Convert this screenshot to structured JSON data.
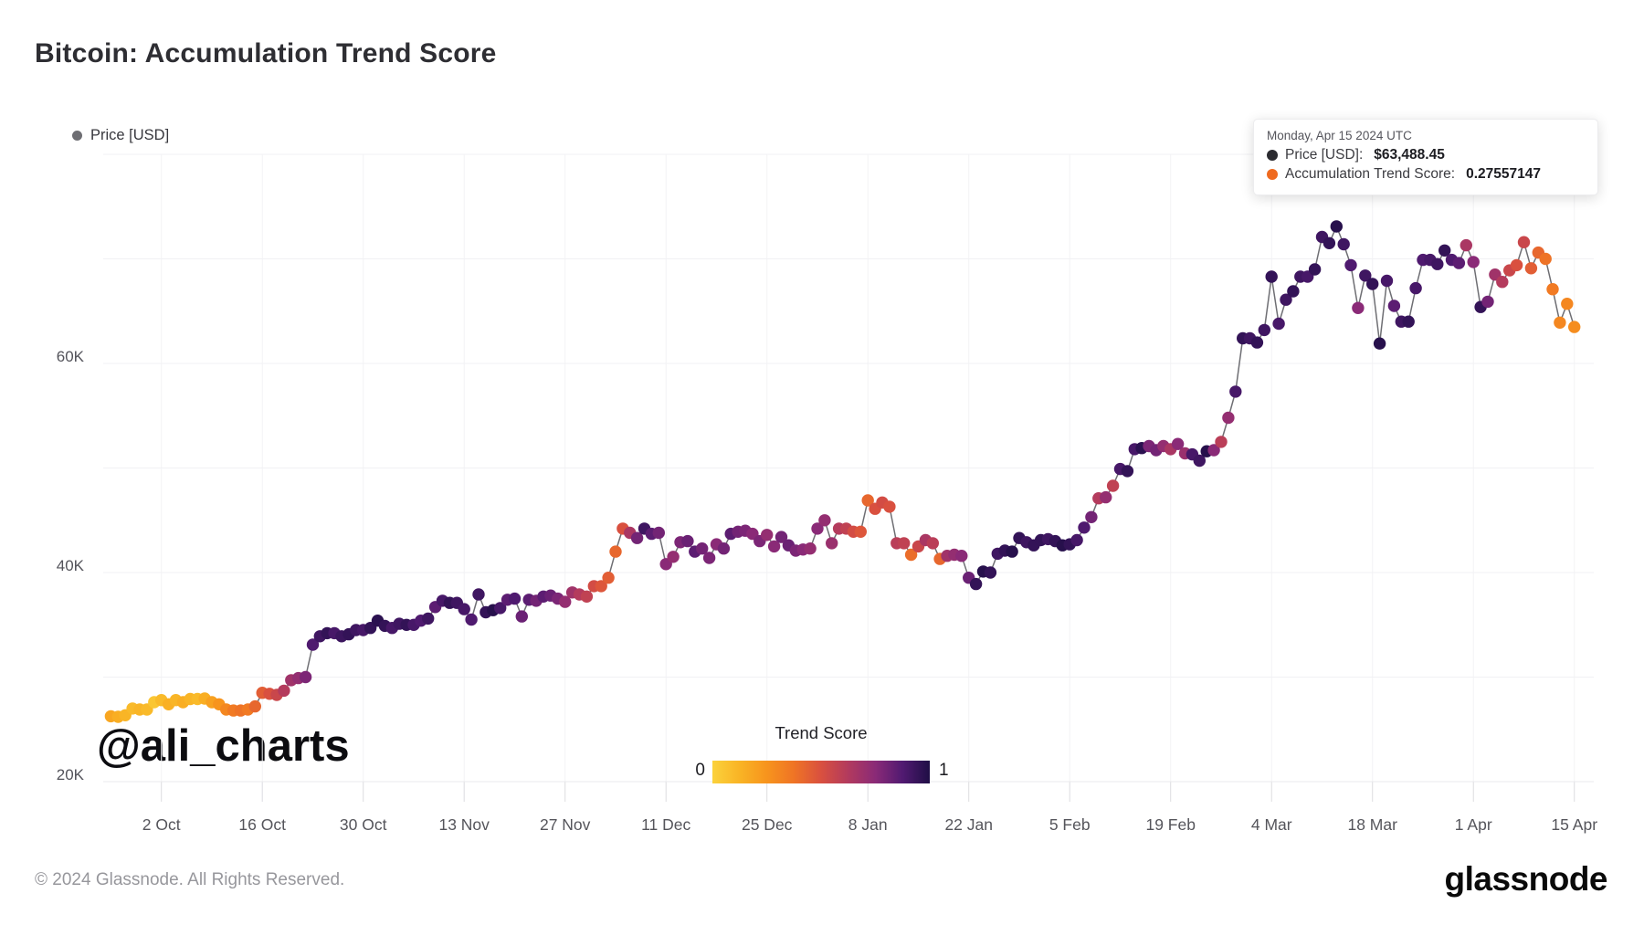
{
  "header": {
    "title": "Bitcoin: Accumulation Trend Score"
  },
  "legend": {
    "price_label": "Price [USD]"
  },
  "tooltip": {
    "date_line": "Monday, Apr 15 2024 UTC",
    "price_label": "Price [USD]:",
    "price_value": "$63,488.45",
    "score_label": "Accumulation Trend Score:",
    "score_value": "0.27557147",
    "price_dot_color": "#2b2b30",
    "score_dot_color": "#ef6a1f"
  },
  "watermark": {
    "text": "@ali_charts"
  },
  "colorbar": {
    "title": "Trend Score",
    "min_label": "0",
    "max_label": "1",
    "stops": [
      [
        0,
        "#fbd23c"
      ],
      [
        0.125,
        "#f9b425"
      ],
      [
        0.25,
        "#f7941d"
      ],
      [
        0.375,
        "#ef7425"
      ],
      [
        0.5,
        "#d9503f"
      ],
      [
        0.625,
        "#b23a5e"
      ],
      [
        0.75,
        "#8a2a77"
      ],
      [
        0.875,
        "#511a71"
      ],
      [
        1,
        "#1f0e45"
      ]
    ]
  },
  "footer": {
    "copyright": "© 2024 Glassnode. All Rights Reserved.",
    "brand": "glassnode"
  },
  "chart_data": {
    "type": "scatter",
    "title": "Bitcoin: Accumulation Trend Score",
    "series_name": "Price [USD]",
    "color_scale": {
      "name": "Trend Score",
      "domain": [
        0,
        1
      ]
    },
    "ylabel": "Price [USD]",
    "ylim": [
      20000,
      80000
    ],
    "grid_step": 10000,
    "y_axis_labeled": [
      {
        "value": 20000,
        "label": "20K"
      },
      {
        "value": 40000,
        "label": "40K"
      },
      {
        "value": 60000,
        "label": "60K"
      }
    ],
    "x_tick_labels": [
      "2 Oct",
      "16 Oct",
      "30 Oct",
      "13 Nov",
      "27 Nov",
      "11 Dec",
      "25 Dec",
      "8 Jan",
      "22 Jan",
      "5 Feb",
      "19 Feb",
      "4 Mar",
      "18 Mar",
      "1 Apr",
      "15 Apr"
    ],
    "points_format": [
      "date",
      "price_usd",
      "accumulation_trend_score"
    ],
    "points": [
      [
        "2023-09-25",
        26250,
        0.18
      ],
      [
        "2023-09-26",
        26200,
        0.15
      ],
      [
        "2023-09-27",
        26350,
        0.12
      ],
      [
        "2023-09-28",
        27000,
        0.1
      ],
      [
        "2023-09-29",
        26900,
        0.12
      ],
      [
        "2023-09-30",
        26900,
        0.1
      ],
      [
        "2023-10-01",
        27600,
        0.05
      ],
      [
        "2023-10-02",
        27800,
        0.1
      ],
      [
        "2023-10-03",
        27400,
        0.14
      ],
      [
        "2023-10-04",
        27800,
        0.12
      ],
      [
        "2023-10-05",
        27600,
        0.15
      ],
      [
        "2023-10-06",
        27900,
        0.12
      ],
      [
        "2023-10-07",
        27900,
        0.1
      ],
      [
        "2023-10-08",
        27950,
        0.15
      ],
      [
        "2023-10-09",
        27600,
        0.2
      ],
      [
        "2023-10-10",
        27400,
        0.25
      ],
      [
        "2023-10-11",
        26900,
        0.3
      ],
      [
        "2023-10-12",
        26800,
        0.35
      ],
      [
        "2023-10-13",
        26800,
        0.38
      ],
      [
        "2023-10-14",
        26900,
        0.35
      ],
      [
        "2023-10-15",
        27200,
        0.42
      ],
      [
        "2023-10-16",
        28500,
        0.45
      ],
      [
        "2023-10-17",
        28400,
        0.5
      ],
      [
        "2023-10-18",
        28300,
        0.55
      ],
      [
        "2023-10-19",
        28700,
        0.62
      ],
      [
        "2023-10-20",
        29700,
        0.68
      ],
      [
        "2023-10-21",
        29900,
        0.72
      ],
      [
        "2023-10-22",
        30000,
        0.78
      ],
      [
        "2023-10-23",
        33100,
        0.88
      ],
      [
        "2023-10-24",
        33900,
        0.92
      ],
      [
        "2023-10-25",
        34200,
        0.95
      ],
      [
        "2023-10-26",
        34200,
        0.9
      ],
      [
        "2023-10-27",
        33900,
        0.93
      ],
      [
        "2023-10-28",
        34100,
        0.95
      ],
      [
        "2023-10-29",
        34500,
        0.92
      ],
      [
        "2023-10-30",
        34500,
        0.9
      ],
      [
        "2023-10-31",
        34700,
        0.95
      ],
      [
        "2023-11-01",
        35400,
        0.97
      ],
      [
        "2023-11-02",
        34900,
        0.95
      ],
      [
        "2023-11-03",
        34700,
        0.9
      ],
      [
        "2023-11-04",
        35100,
        0.92
      ],
      [
        "2023-11-05",
        35000,
        0.95
      ],
      [
        "2023-11-06",
        35000,
        0.9
      ],
      [
        "2023-11-07",
        35400,
        0.88
      ],
      [
        "2023-11-08",
        35600,
        0.92
      ],
      [
        "2023-11-09",
        36700,
        0.85
      ],
      [
        "2023-11-10",
        37300,
        0.9
      ],
      [
        "2023-11-11",
        37100,
        0.95
      ],
      [
        "2023-11-12",
        37100,
        0.92
      ],
      [
        "2023-11-13",
        36500,
        0.9
      ],
      [
        "2023-11-14",
        35500,
        0.88
      ],
      [
        "2023-11-15",
        37900,
        0.92
      ],
      [
        "2023-11-16",
        36200,
        0.95
      ],
      [
        "2023-11-17",
        36400,
        0.98
      ],
      [
        "2023-11-18",
        36600,
        0.9
      ],
      [
        "2023-11-19",
        37400,
        0.85
      ],
      [
        "2023-11-20",
        37500,
        0.88
      ],
      [
        "2023-11-21",
        35800,
        0.82
      ],
      [
        "2023-11-22",
        37400,
        0.85
      ],
      [
        "2023-11-23",
        37300,
        0.8
      ],
      [
        "2023-11-24",
        37700,
        0.85
      ],
      [
        "2023-11-25",
        37800,
        0.82
      ],
      [
        "2023-11-26",
        37500,
        0.78
      ],
      [
        "2023-11-27",
        37200,
        0.72
      ],
      [
        "2023-11-28",
        38100,
        0.68
      ],
      [
        "2023-11-29",
        37900,
        0.62
      ],
      [
        "2023-11-30",
        37700,
        0.58
      ],
      [
        "2023-12-01",
        38700,
        0.52
      ],
      [
        "2023-12-02",
        38700,
        0.48
      ],
      [
        "2023-12-03",
        39500,
        0.45
      ],
      [
        "2023-12-04",
        42000,
        0.42
      ],
      [
        "2023-12-05",
        44200,
        0.5
      ],
      [
        "2023-12-06",
        43800,
        0.65
      ],
      [
        "2023-12-07",
        43300,
        0.8
      ],
      [
        "2023-12-08",
        44200,
        0.92
      ],
      [
        "2023-12-09",
        43700,
        0.85
      ],
      [
        "2023-12-10",
        43800,
        0.8
      ],
      [
        "2023-12-11",
        40800,
        0.75
      ],
      [
        "2023-12-12",
        41500,
        0.72
      ],
      [
        "2023-12-13",
        42900,
        0.78
      ],
      [
        "2023-12-14",
        43000,
        0.82
      ],
      [
        "2023-12-15",
        42000,
        0.85
      ],
      [
        "2023-12-16",
        42300,
        0.8
      ],
      [
        "2023-12-17",
        41400,
        0.78
      ],
      [
        "2023-12-18",
        42700,
        0.75
      ],
      [
        "2023-12-19",
        42300,
        0.8
      ],
      [
        "2023-12-20",
        43700,
        0.85
      ],
      [
        "2023-12-21",
        43900,
        0.8
      ],
      [
        "2023-12-22",
        44000,
        0.78
      ],
      [
        "2023-12-23",
        43700,
        0.75
      ],
      [
        "2023-12-24",
        43000,
        0.78
      ],
      [
        "2023-12-25",
        43600,
        0.72
      ],
      [
        "2023-12-26",
        42500,
        0.75
      ],
      [
        "2023-12-27",
        43400,
        0.8
      ],
      [
        "2023-12-28",
        42600,
        0.82
      ],
      [
        "2023-12-29",
        42100,
        0.78
      ],
      [
        "2023-12-30",
        42200,
        0.75
      ],
      [
        "2023-12-31",
        42300,
        0.72
      ],
      [
        "2024-01-01",
        44200,
        0.75
      ],
      [
        "2024-01-02",
        45000,
        0.72
      ],
      [
        "2024-01-03",
        42800,
        0.7
      ],
      [
        "2024-01-04",
        44200,
        0.62
      ],
      [
        "2024-01-05",
        44200,
        0.58
      ],
      [
        "2024-01-06",
        43900,
        0.52
      ],
      [
        "2024-01-07",
        43900,
        0.48
      ],
      [
        "2024-01-08",
        46900,
        0.42
      ],
      [
        "2024-01-09",
        46100,
        0.5
      ],
      [
        "2024-01-10",
        46700,
        0.52
      ],
      [
        "2024-01-11",
        46300,
        0.5
      ],
      [
        "2024-01-12",
        42800,
        0.6
      ],
      [
        "2024-01-13",
        42800,
        0.58
      ],
      [
        "2024-01-14",
        41700,
        0.4
      ],
      [
        "2024-01-15",
        42500,
        0.55
      ],
      [
        "2024-01-16",
        43100,
        0.65
      ],
      [
        "2024-01-17",
        42800,
        0.6
      ],
      [
        "2024-01-18",
        41300,
        0.42
      ],
      [
        "2024-01-19",
        41600,
        0.68
      ],
      [
        "2024-01-20",
        41700,
        0.72
      ],
      [
        "2024-01-21",
        41600,
        0.75
      ],
      [
        "2024-01-22",
        39500,
        0.82
      ],
      [
        "2024-01-23",
        38900,
        0.95
      ],
      [
        "2024-01-24",
        40100,
        0.98
      ],
      [
        "2024-01-25",
        40000,
        0.95
      ],
      [
        "2024-01-26",
        41800,
        0.92
      ],
      [
        "2024-01-27",
        42100,
        0.95
      ],
      [
        "2024-01-28",
        42000,
        0.98
      ],
      [
        "2024-01-29",
        43300,
        0.95
      ],
      [
        "2024-01-30",
        42900,
        0.92
      ],
      [
        "2024-01-31",
        42600,
        0.95
      ],
      [
        "2024-02-01",
        43100,
        0.95
      ],
      [
        "2024-02-02",
        43200,
        0.92
      ],
      [
        "2024-02-03",
        43000,
        0.95
      ],
      [
        "2024-02-04",
        42600,
        0.98
      ],
      [
        "2024-02-05",
        42700,
        0.95
      ],
      [
        "2024-02-06",
        43100,
        0.9
      ],
      [
        "2024-02-07",
        44300,
        0.88
      ],
      [
        "2024-02-08",
        45300,
        0.8
      ],
      [
        "2024-02-09",
        47100,
        0.62
      ],
      [
        "2024-02-10",
        47200,
        0.72
      ],
      [
        "2024-02-11",
        48300,
        0.58
      ],
      [
        "2024-02-12",
        49900,
        0.9
      ],
      [
        "2024-02-13",
        49700,
        0.95
      ],
      [
        "2024-02-14",
        51800,
        0.9
      ],
      [
        "2024-02-15",
        51900,
        0.97
      ],
      [
        "2024-02-16",
        52100,
        0.78
      ],
      [
        "2024-02-17",
        51700,
        0.8
      ],
      [
        "2024-02-18",
        52100,
        0.72
      ],
      [
        "2024-02-19",
        51800,
        0.65
      ],
      [
        "2024-02-20",
        52300,
        0.75
      ],
      [
        "2024-02-21",
        51400,
        0.7
      ],
      [
        "2024-02-22",
        51300,
        0.9
      ],
      [
        "2024-02-23",
        50700,
        0.92
      ],
      [
        "2024-02-24",
        51600,
        0.98
      ],
      [
        "2024-02-25",
        51700,
        0.75
      ],
      [
        "2024-02-26",
        52500,
        0.6
      ],
      [
        "2024-02-27",
        54800,
        0.72
      ],
      [
        "2024-02-28",
        57300,
        0.9
      ],
      [
        "2024-02-29",
        62400,
        0.95
      ],
      [
        "2024-03-01",
        62400,
        0.92
      ],
      [
        "2024-03-02",
        62000,
        0.95
      ],
      [
        "2024-03-03",
        63200,
        0.92
      ],
      [
        "2024-03-04",
        68300,
        0.95
      ],
      [
        "2024-03-05",
        63800,
        0.9
      ],
      [
        "2024-03-06",
        66100,
        0.92
      ],
      [
        "2024-03-07",
        66900,
        0.95
      ],
      [
        "2024-03-08",
        68300,
        0.92
      ],
      [
        "2024-03-09",
        68300,
        0.9
      ],
      [
        "2024-03-10",
        69000,
        0.95
      ],
      [
        "2024-03-11",
        72100,
        0.92
      ],
      [
        "2024-03-12",
        71500,
        0.95
      ],
      [
        "2024-03-13",
        73100,
        0.98
      ],
      [
        "2024-03-14",
        71400,
        0.92
      ],
      [
        "2024-03-15",
        69400,
        0.88
      ],
      [
        "2024-03-16",
        65300,
        0.75
      ],
      [
        "2024-03-17",
        68400,
        0.92
      ],
      [
        "2024-03-18",
        67600,
        0.95
      ],
      [
        "2024-03-19",
        61900,
        0.98
      ],
      [
        "2024-03-20",
        67900,
        0.9
      ],
      [
        "2024-03-21",
        65500,
        0.85
      ],
      [
        "2024-03-22",
        64000,
        0.92
      ],
      [
        "2024-03-23",
        64000,
        0.95
      ],
      [
        "2024-03-24",
        67200,
        0.9
      ],
      [
        "2024-03-25",
        69900,
        0.88
      ],
      [
        "2024-03-26",
        69900,
        0.9
      ],
      [
        "2024-03-27",
        69500,
        0.92
      ],
      [
        "2024-03-28",
        70800,
        0.95
      ],
      [
        "2024-03-29",
        69900,
        0.88
      ],
      [
        "2024-03-30",
        69600,
        0.85
      ],
      [
        "2024-03-31",
        71300,
        0.65
      ],
      [
        "2024-04-01",
        69700,
        0.75
      ],
      [
        "2024-04-02",
        65400,
        0.95
      ],
      [
        "2024-04-03",
        65900,
        0.8
      ],
      [
        "2024-04-04",
        68500,
        0.68
      ],
      [
        "2024-04-05",
        67800,
        0.62
      ],
      [
        "2024-04-06",
        68900,
        0.55
      ],
      [
        "2024-04-07",
        69400,
        0.5
      ],
      [
        "2024-04-08",
        71600,
        0.55
      ],
      [
        "2024-04-09",
        69100,
        0.45
      ],
      [
        "2024-04-10",
        70600,
        0.42
      ],
      [
        "2024-04-11",
        70000,
        0.38
      ],
      [
        "2024-04-12",
        67100,
        0.35
      ],
      [
        "2024-04-13",
        63900,
        0.3
      ],
      [
        "2024-04-14",
        65700,
        0.3
      ],
      [
        "2024-04-15",
        63488.45,
        0.27557147
      ]
    ]
  }
}
